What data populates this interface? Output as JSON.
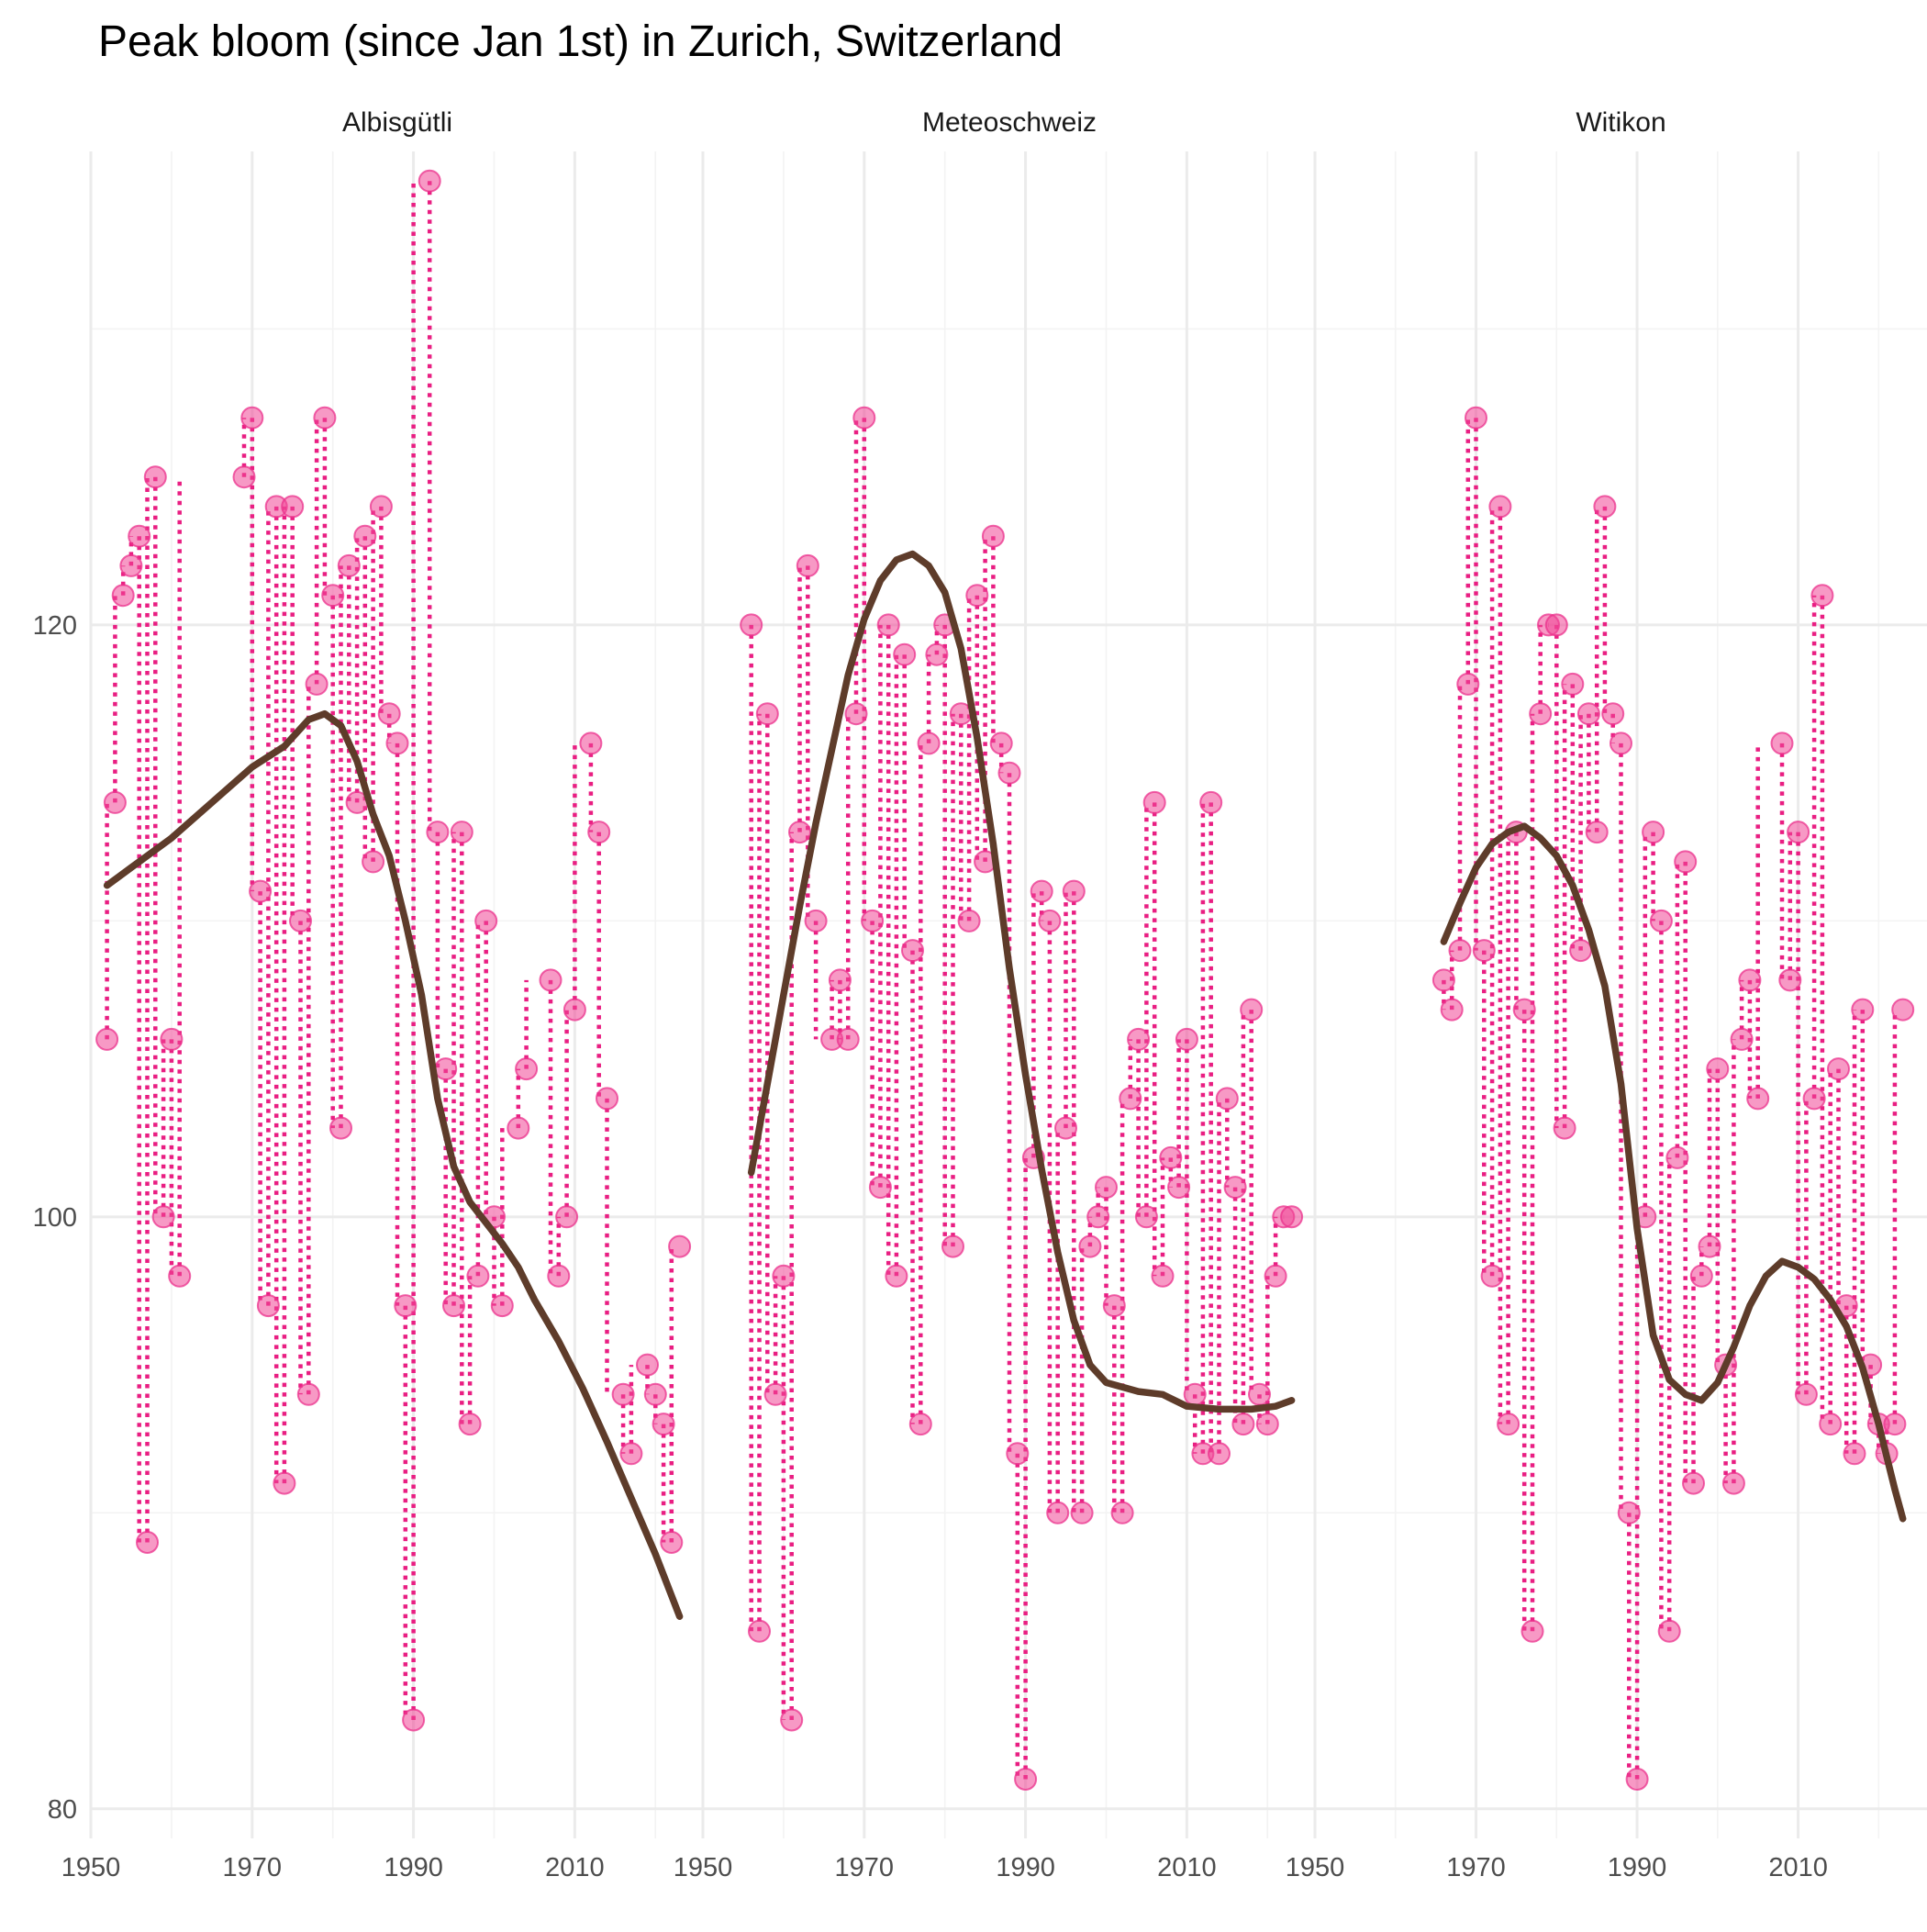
{
  "chart_data": {
    "type": "scatter",
    "title": "Peak bloom (since Jan 1st) in Zurich, Switzerland",
    "xlabel": "",
    "ylabel": "",
    "xlim": [
      1950,
      2026
    ],
    "ylim": [
      79,
      136
    ],
    "x_ticks": [
      1950,
      1970,
      1990,
      2010
    ],
    "y_ticks": [
      80,
      100,
      120
    ],
    "grid": true,
    "colors": {
      "points": "#f0468c",
      "stems": "#e91e82",
      "smooth": "#5e3c2a",
      "grid": "#ebebeb"
    },
    "panels": [
      {
        "name": "Albisgütli",
        "points": [
          [
            1952,
            106
          ],
          [
            1953,
            114
          ],
          [
            1954,
            121
          ],
          [
            1955,
            122
          ],
          [
            1956,
            123
          ],
          [
            1958,
            125
          ],
          [
            1959,
            100
          ],
          [
            1957,
            89
          ],
          [
            1960,
            106
          ],
          [
            1961,
            98
          ],
          [
            1969,
            125
          ],
          [
            1970,
            127
          ],
          [
            1971,
            111
          ],
          [
            1972,
            97
          ],
          [
            1973,
            124
          ],
          [
            1974,
            91
          ],
          [
            1975,
            124
          ],
          [
            1976,
            110
          ],
          [
            1977,
            94
          ],
          [
            1978,
            118
          ],
          [
            1979,
            127
          ],
          [
            1980,
            121
          ],
          [
            1981,
            103
          ],
          [
            1982,
            122
          ],
          [
            1983,
            114
          ],
          [
            1984,
            123
          ],
          [
            1985,
            112
          ],
          [
            1986,
            124
          ],
          [
            1987,
            117
          ],
          [
            1988,
            116
          ],
          [
            1989,
            97
          ],
          [
            1990,
            83
          ],
          [
            1992,
            135
          ],
          [
            1993,
            113
          ],
          [
            1994,
            105
          ],
          [
            1995,
            97
          ],
          [
            1996,
            113
          ],
          [
            1997,
            93
          ],
          [
            1998,
            98
          ],
          [
            1999,
            110
          ],
          [
            2000,
            100
          ],
          [
            2001,
            97
          ],
          [
            2003,
            103
          ],
          [
            2004,
            105
          ],
          [
            2007,
            108
          ],
          [
            2008,
            98
          ],
          [
            2009,
            100
          ],
          [
            2010,
            107
          ],
          [
            2012,
            116
          ],
          [
            2013,
            113
          ],
          [
            2014,
            104
          ],
          [
            2016,
            94
          ],
          [
            2017,
            92
          ],
          [
            2019,
            95
          ],
          [
            2020,
            94
          ],
          [
            2021,
            93
          ],
          [
            2022,
            89
          ],
          [
            2023,
            99
          ]
        ],
        "smooth": [
          [
            1952,
            111.2
          ],
          [
            1955,
            111.8
          ],
          [
            1960,
            112.8
          ],
          [
            1965,
            114
          ],
          [
            1970,
            115.2
          ],
          [
            1974,
            115.9
          ],
          [
            1977,
            116.8
          ],
          [
            1979,
            117
          ],
          [
            1981,
            116.6
          ],
          [
            1983,
            115.4
          ],
          [
            1985,
            113.6
          ],
          [
            1987,
            112.2
          ],
          [
            1989,
            110
          ],
          [
            1991,
            107.5
          ],
          [
            1993,
            104
          ],
          [
            1995,
            101.7
          ],
          [
            1997,
            100.5
          ],
          [
            1999,
            99.8
          ],
          [
            2001,
            99.1
          ],
          [
            2003,
            98.3
          ],
          [
            2005,
            97.2
          ],
          [
            2008,
            95.8
          ],
          [
            2011,
            94.2
          ],
          [
            2014,
            92.4
          ],
          [
            2017,
            90.5
          ],
          [
            2020,
            88.6
          ],
          [
            2023,
            86.5
          ]
        ]
      },
      {
        "name": "Meteoschweiz",
        "points": [
          [
            1956,
            120
          ],
          [
            1957,
            86
          ],
          [
            1958,
            117
          ],
          [
            1959,
            94
          ],
          [
            1960,
            98
          ],
          [
            1961,
            83
          ],
          [
            1962,
            113
          ],
          [
            1963,
            122
          ],
          [
            1964,
            110
          ],
          [
            1966,
            106
          ],
          [
            1967,
            108
          ],
          [
            1968,
            106
          ],
          [
            1969,
            117
          ],
          [
            1970,
            127
          ],
          [
            1971,
            110
          ],
          [
            1972,
            101
          ],
          [
            1973,
            120
          ],
          [
            1974,
            98
          ],
          [
            1975,
            119
          ],
          [
            1976,
            109
          ],
          [
            1977,
            93
          ],
          [
            1978,
            116
          ],
          [
            1979,
            119
          ],
          [
            1980,
            120
          ],
          [
            1981,
            99
          ],
          [
            1982,
            117
          ],
          [
            1983,
            110
          ],
          [
            1984,
            121
          ],
          [
            1985,
            112
          ],
          [
            1986,
            123
          ],
          [
            1987,
            116
          ],
          [
            1988,
            115
          ],
          [
            1989,
            92
          ],
          [
            1990,
            81
          ],
          [
            1991,
            102
          ],
          [
            1992,
            111
          ],
          [
            1993,
            110
          ],
          [
            1994,
            90
          ],
          [
            1995,
            103
          ],
          [
            1996,
            111
          ],
          [
            1997,
            90
          ],
          [
            1998,
            99
          ],
          [
            1999,
            100
          ],
          [
            2000,
            101
          ],
          [
            2001,
            97
          ],
          [
            2002,
            90
          ],
          [
            2003,
            104
          ],
          [
            2004,
            106
          ],
          [
            2005,
            100
          ],
          [
            2006,
            114
          ],
          [
            2007,
            98
          ],
          [
            2008,
            102
          ],
          [
            2009,
            101
          ],
          [
            2010,
            106
          ],
          [
            2011,
            94
          ],
          [
            2012,
            92
          ],
          [
            2013,
            114
          ],
          [
            2014,
            92
          ],
          [
            2015,
            104
          ],
          [
            2016,
            101
          ],
          [
            2017,
            93
          ],
          [
            2018,
            107
          ],
          [
            2019,
            94
          ],
          [
            2020,
            93
          ],
          [
            2021,
            98
          ],
          [
            2022,
            100
          ],
          [
            2023,
            100
          ]
        ],
        "smooth": [
          [
            1956,
            101.5
          ],
          [
            1958,
            104.5
          ],
          [
            1960,
            107.5
          ],
          [
            1962,
            110.5
          ],
          [
            1964,
            113.3
          ],
          [
            1966,
            115.8
          ],
          [
            1968,
            118.3
          ],
          [
            1970,
            120.2
          ],
          [
            1972,
            121.5
          ],
          [
            1974,
            122.2
          ],
          [
            1976,
            122.4
          ],
          [
            1978,
            122
          ],
          [
            1980,
            121.1
          ],
          [
            1982,
            119.2
          ],
          [
            1984,
            116.2
          ],
          [
            1986,
            112.6
          ],
          [
            1988,
            108.4
          ],
          [
            1990,
            104.8
          ],
          [
            1992,
            101.6
          ],
          [
            1994,
            98.8
          ],
          [
            1996,
            96.5
          ],
          [
            1998,
            95
          ],
          [
            2000,
            94.4
          ],
          [
            2004,
            94.1
          ],
          [
            2007,
            94
          ],
          [
            2010,
            93.6
          ],
          [
            2014,
            93.5
          ],
          [
            2018,
            93.5
          ],
          [
            2021,
            93.6
          ],
          [
            2023,
            93.8
          ]
        ]
      },
      {
        "name": "Witikon",
        "points": [
          [
            1966,
            108
          ],
          [
            1967,
            107
          ],
          [
            1968,
            109
          ],
          [
            1969,
            118
          ],
          [
            1970,
            127
          ],
          [
            1971,
            109
          ],
          [
            1972,
            98
          ],
          [
            1973,
            124
          ],
          [
            1974,
            93
          ],
          [
            1975,
            113
          ],
          [
            1976,
            107
          ],
          [
            1977,
            86
          ],
          [
            1978,
            117
          ],
          [
            1979,
            120
          ],
          [
            1980,
            120
          ],
          [
            1981,
            103
          ],
          [
            1982,
            118
          ],
          [
            1983,
            109
          ],
          [
            1984,
            117
          ],
          [
            1985,
            113
          ],
          [
            1986,
            124
          ],
          [
            1987,
            117
          ],
          [
            1988,
            116
          ],
          [
            1989,
            90
          ],
          [
            1990,
            81
          ],
          [
            1991,
            100
          ],
          [
            1992,
            113
          ],
          [
            1993,
            110
          ],
          [
            1994,
            86
          ],
          [
            1995,
            102
          ],
          [
            1996,
            112
          ],
          [
            1997,
            91
          ],
          [
            1998,
            98
          ],
          [
            1999,
            99
          ],
          [
            2000,
            105
          ],
          [
            2001,
            95
          ],
          [
            2002,
            91
          ],
          [
            2003,
            106
          ],
          [
            2004,
            108
          ],
          [
            2005,
            104
          ],
          [
            2008,
            116
          ],
          [
            2009,
            108
          ],
          [
            2010,
            113
          ],
          [
            2011,
            94
          ],
          [
            2012,
            104
          ],
          [
            2013,
            121
          ],
          [
            2014,
            93
          ],
          [
            2015,
            105
          ],
          [
            2016,
            97
          ],
          [
            2017,
            92
          ],
          [
            2018,
            107
          ],
          [
            2019,
            95
          ],
          [
            2020,
            93
          ],
          [
            2021,
            92
          ],
          [
            2022,
            93
          ],
          [
            2023,
            107
          ]
        ],
        "smooth": [
          [
            1966,
            109.3
          ],
          [
            1968,
            110.6
          ],
          [
            1970,
            111.8
          ],
          [
            1972,
            112.6
          ],
          [
            1974,
            113
          ],
          [
            1976,
            113.2
          ],
          [
            1978,
            112.8
          ],
          [
            1980,
            112.2
          ],
          [
            1982,
            111.2
          ],
          [
            1984,
            109.7
          ],
          [
            1986,
            107.8
          ],
          [
            1988,
            104.5
          ],
          [
            1990,
            99.6
          ],
          [
            1992,
            96
          ],
          [
            1994,
            94.5
          ],
          [
            1996,
            94
          ],
          [
            1998,
            93.8
          ],
          [
            2000,
            94.4
          ],
          [
            2002,
            95.6
          ],
          [
            2004,
            97
          ],
          [
            2006,
            98
          ],
          [
            2008,
            98.5
          ],
          [
            2010,
            98.3
          ],
          [
            2012,
            97.9
          ],
          [
            2014,
            97.2
          ],
          [
            2016,
            96.3
          ],
          [
            2018,
            94.9
          ],
          [
            2020,
            93
          ],
          [
            2022,
            90.8
          ],
          [
            2023,
            89.8
          ]
        ]
      }
    ]
  }
}
